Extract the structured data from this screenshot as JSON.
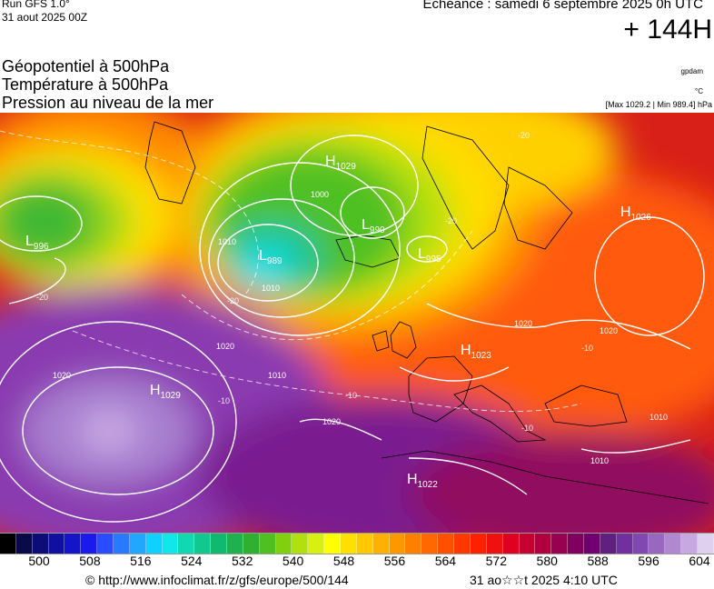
{
  "header": {
    "run_label": "Run GFS 1.0°",
    "run_date": "31 aout 2025 00Z",
    "echeance": "Echéance : samedi 6 septembre 2025 0h UTC",
    "lead_time": "+ 144H"
  },
  "titles": {
    "line1": "Géopotentiel à 500hPa",
    "line2": "Température à 500hPa",
    "line3": "Pression au niveau de la mer"
  },
  "units": {
    "geopotential": "gpdam",
    "temperature": "°C",
    "pressure_range": "[Max 1029.2 | Min 989.4] hPa"
  },
  "pressure_centers": [
    {
      "type": "L",
      "value": "996"
    },
    {
      "type": "H",
      "value": "1029"
    },
    {
      "type": "L",
      "value": "990"
    },
    {
      "type": "L",
      "value": "989"
    },
    {
      "type": "L",
      "value": "995"
    },
    {
      "type": "H",
      "value": "1026"
    },
    {
      "type": "H",
      "value": "1029"
    },
    {
      "type": "H",
      "value": "1023"
    },
    {
      "type": "H",
      "value": "1022"
    }
  ],
  "isobar_labels": [
    "1000",
    "1010",
    "1010",
    "1020",
    "1020",
    "1010",
    "1020",
    "1020",
    "1020",
    "1010",
    "1010"
  ],
  "isotherm_labels": [
    "-20",
    "-20",
    "-20",
    "-10",
    "-10",
    "-10",
    "-10",
    "-20"
  ],
  "colorbar": {
    "colors": [
      "#000000",
      "#0a0a4a",
      "#0d0d78",
      "#1010a0",
      "#1515c8",
      "#1a1aee",
      "#2a4cff",
      "#2a7aff",
      "#20a8ff",
      "#10d0ff",
      "#10e8e8",
      "#10d8b0",
      "#10c890",
      "#10b870",
      "#20b050",
      "#30b030",
      "#50c020",
      "#80d010",
      "#b0e010",
      "#d8f010",
      "#ffff00",
      "#ffe000",
      "#ffc800",
      "#ffb000",
      "#ff9800",
      "#ff8000",
      "#ff6800",
      "#ff5000",
      "#ff3800",
      "#ff2000",
      "#f01010",
      "#e00020",
      "#c80030",
      "#b00040",
      "#980050",
      "#800060",
      "#700070",
      "#602080",
      "#7030a0",
      "#8048b0",
      "#9868c0",
      "#b088d0",
      "#c8a8e0",
      "#e0d0f0"
    ],
    "ticks": [
      "500",
      "508",
      "516",
      "524",
      "532",
      "540",
      "548",
      "556",
      "564",
      "572",
      "580",
      "588",
      "596",
      "604"
    ]
  },
  "footer": {
    "url": "© http://www.infoclimat.fr/z/gfs/europe/500/144",
    "timestamp": "31 ao☆☆t 2025  4:10 UTC"
  }
}
